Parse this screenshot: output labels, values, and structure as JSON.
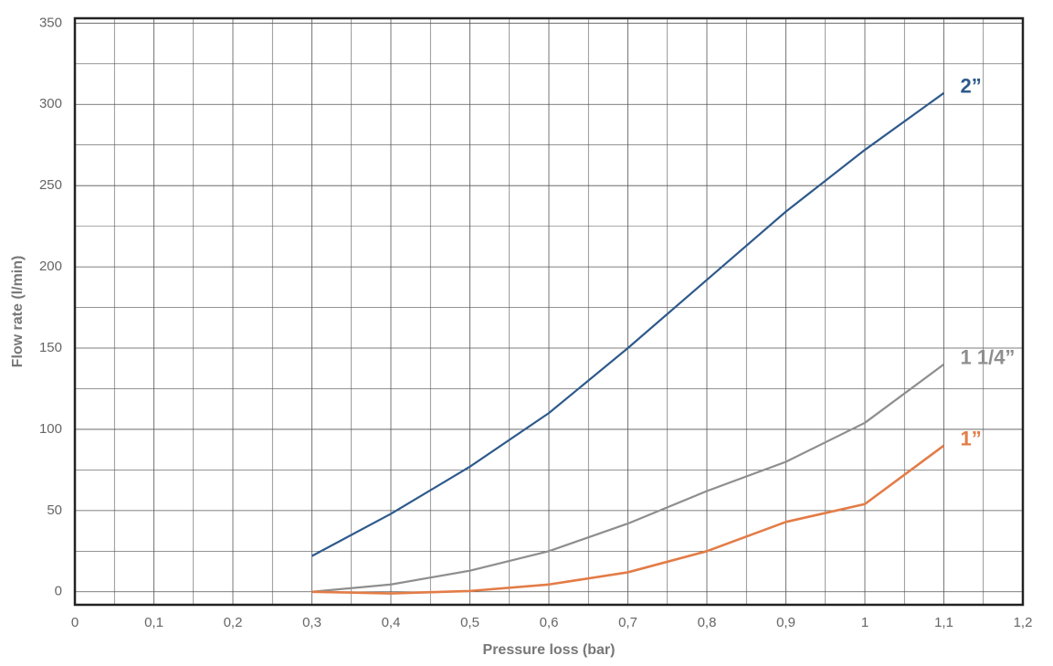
{
  "chart_data": {
    "type": "line",
    "x_label": "Pressure loss (bar)",
    "y_label": "Flow rate (l/min)",
    "x": [
      0.3,
      0.4,
      0.5,
      0.6,
      0.7,
      0.8,
      0.9,
      1.0,
      1.1
    ],
    "series": [
      {
        "name": "2”",
        "color": "#2e5a8c",
        "values": [
          22,
          48,
          77,
          110,
          150,
          192,
          234,
          272,
          307
        ]
      },
      {
        "name": "1 1/4”",
        "color": "#8e8e8e",
        "values": [
          0,
          4.5,
          13,
          25,
          42,
          62,
          80,
          104,
          140
        ]
      },
      {
        "name": "1”",
        "color": "#e37c47",
        "values": [
          0,
          -1,
          0.5,
          4.5,
          12,
          25,
          43,
          54,
          90
        ]
      }
    ],
    "xlim": [
      0,
      1.2
    ],
    "xticks": [
      0,
      {
        "value": 0.1,
        "label": "0,1"
      },
      {
        "value": 0.2,
        "label": "0,2"
      },
      {
        "value": 0.3,
        "label": "0,3"
      },
      {
        "value": 0.4,
        "label": "0,4"
      },
      {
        "value": 0.5,
        "label": "0,5"
      },
      {
        "value": 0.6,
        "label": "0,6"
      },
      {
        "value": 0.7,
        "label": "0,7"
      },
      {
        "value": 0.8,
        "label": "0,8"
      },
      {
        "value": 0.9,
        "label": "0,9"
      },
      1,
      {
        "value": 1.1,
        "label": "1,1"
      },
      {
        "value": 1.2,
        "label": "1,2"
      }
    ],
    "ylim": [
      -8,
      353
    ],
    "yticks": [
      0,
      50,
      100,
      150,
      200,
      250,
      300,
      350
    ],
    "grid": true,
    "grid_minor_divisions": 2
  }
}
